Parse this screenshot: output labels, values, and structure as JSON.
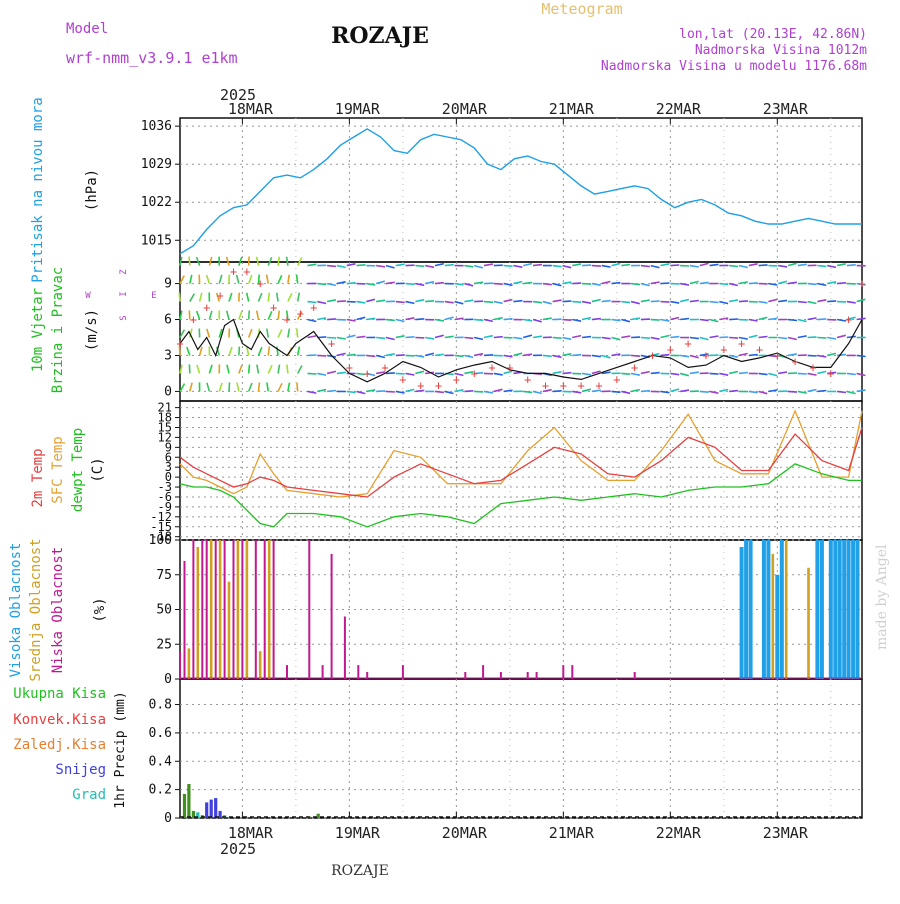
{
  "header": {
    "model_label": "Model",
    "model_name": "wrf-nmm_v3.9.1  e1km",
    "station": "ROZAJE",
    "meteogram": "Meteogram",
    "lonlat": "lon,lat (20.13E, 42.86N)",
    "elevation": "Nadmorska Visina 1012m",
    "model_elevation": "Nadmorska Visina u modelu 1176.68m",
    "credit": "made by Angel",
    "footer_station": "ROZAJE"
  },
  "colors": {
    "pressure": "#1ea0e6",
    "temp2m": "#e64040",
    "sfc_temp": "#e6a030",
    "dewpoint": "#20c020",
    "high_cloud": "#20a0e6",
    "mid_cloud": "#d0a020",
    "low_cloud": "#c01890",
    "total_precip": "#409020",
    "conv_precip": "#e64040",
    "snow": "#4040e0",
    "grad": "#20c0b0",
    "purple_text": "#b040d0"
  },
  "time_axis": {
    "top_year": "2025",
    "bottom_year": "2025",
    "days": [
      "18MAR",
      "19MAR",
      "20MAR",
      "21MAR",
      "22MAR",
      "23MAR"
    ]
  },
  "chart_data": [
    {
      "type": "line",
      "name": "pressure",
      "ylabel_color_text": "Pritisak na nivou mora",
      "unit": "(hPa)",
      "yticks": [
        "1015",
        "1022",
        "1029",
        "1036"
      ],
      "ylim": [
        1011,
        1037.5
      ],
      "x_hours": [
        0,
        3,
        6,
        9,
        12,
        15,
        18,
        21,
        24,
        27,
        30,
        33,
        36,
        39,
        42,
        45,
        48,
        51,
        54,
        57,
        60,
        63,
        66,
        69,
        72,
        75,
        78,
        81,
        84,
        87,
        90,
        93,
        96,
        99,
        102,
        105,
        108,
        111,
        114,
        117,
        120,
        123,
        126,
        129,
        132,
        135,
        138,
        141,
        144,
        147,
        150,
        153
      ],
      "values": [
        1012.5,
        1014,
        1017,
        1019.5,
        1021,
        1021.5,
        1024,
        1026.5,
        1027,
        1026.5,
        1028,
        1030,
        1032.5,
        1034,
        1035.5,
        1034,
        1031.5,
        1031,
        1033.5,
        1034.5,
        1034,
        1033.5,
        1032,
        1029,
        1028,
        1030,
        1030.5,
        1029.5,
        1029,
        1027,
        1025,
        1023.5,
        1024,
        1024.5,
        1025,
        1024.5,
        1022.5,
        1021,
        1022,
        1022.5,
        1021.5,
        1020,
        1019.5,
        1018.5,
        1018,
        1018,
        1018.5,
        1019,
        1018.5,
        1018,
        1018,
        1018
      ],
      "grid": true
    },
    {
      "type": "line",
      "name": "wind",
      "ylabel_color_text": [
        "10m Vjetar",
        "Brzina i Pravac"
      ],
      "unit": "(m/s)",
      "yticks": [
        "0",
        "3",
        "6",
        "9"
      ],
      "ylim": [
        -0.8,
        10.8
      ],
      "compass": [
        "Z",
        "I",
        "W",
        "E",
        "S"
      ],
      "series": [
        {
          "name": "speed",
          "x_hours": [
            0,
            2,
            4,
            6,
            8,
            10,
            12,
            14,
            16,
            18,
            20,
            22,
            24,
            26,
            28,
            30,
            34,
            38,
            42,
            46,
            50,
            54,
            58,
            62,
            66,
            70,
            74,
            78,
            82,
            86,
            90,
            94,
            98,
            102,
            106,
            110,
            114,
            118,
            122,
            126,
            130,
            134,
            138,
            142,
            146,
            150,
            153
          ],
          "values": [
            4,
            5,
            3.5,
            4.5,
            3,
            5.5,
            6,
            4,
            3.5,
            5,
            4,
            3.5,
            3,
            4,
            4.5,
            5,
            3,
            1.5,
            0.8,
            1.5,
            2.5,
            2,
            1.2,
            1.8,
            2.2,
            2.5,
            1.8,
            1.5,
            1.5,
            1.2,
            1,
            1.5,
            2,
            2.5,
            3,
            2.8,
            2,
            2.2,
            3,
            2.5,
            2.8,
            3.2,
            2.5,
            2,
            2,
            4,
            6
          ]
        },
        {
          "name": "gust",
          "x_hours": [
            0,
            3,
            6,
            9,
            12,
            15,
            18,
            21,
            24,
            27,
            30,
            34,
            38,
            42,
            46,
            50,
            54,
            58,
            62,
            66,
            70,
            74,
            78,
            82,
            86,
            90,
            94,
            98,
            102,
            106,
            110,
            114,
            118,
            122,
            126,
            130,
            134,
            138,
            142,
            146,
            150,
            153
          ],
          "values": [
            4,
            6,
            7,
            8,
            10,
            10,
            9,
            7,
            6,
            6.5,
            7,
            4,
            2,
            1.5,
            2,
            1,
            0.5,
            0.5,
            1,
            1.5,
            2,
            2,
            1,
            0.5,
            0.5,
            0.5,
            0.5,
            1,
            2,
            3,
            3.5,
            4,
            3,
            3.5,
            4,
            3.5,
            3,
            2.5,
            2,
            1.5,
            6,
            9
          ]
        }
      ],
      "grid": true
    },
    {
      "type": "line",
      "name": "temperature",
      "ylabel_lines": [
        "2m Temp",
        "SFC Temp",
        "dewpt Temp"
      ],
      "unit": "(C)",
      "yticks": [
        "-18",
        "-15",
        "-12",
        "-9",
        "-6",
        "-3",
        "0",
        "3",
        "6",
        "9",
        "12",
        "15",
        "18",
        "21"
      ],
      "ylim": [
        -19,
        23
      ],
      "series": [
        {
          "name": "2m Temp",
          "x_hours": [
            0,
            3,
            6,
            9,
            12,
            15,
            18,
            21,
            24,
            30,
            36,
            42,
            48,
            54,
            60,
            66,
            72,
            78,
            84,
            90,
            96,
            102,
            108,
            114,
            120,
            126,
            132,
            138,
            144,
            150,
            153
          ],
          "values": [
            6,
            3,
            1,
            -1,
            -3,
            -2,
            0,
            -1,
            -3,
            -4,
            -5,
            -6,
            0,
            4,
            1,
            -2,
            -1,
            4,
            9,
            7,
            1,
            0,
            5,
            12,
            9,
            2,
            2,
            13,
            5,
            2,
            15
          ]
        },
        {
          "name": "SFC Temp",
          "x_hours": [
            0,
            3,
            6,
            9,
            12,
            15,
            18,
            21,
            24,
            30,
            36,
            42,
            48,
            54,
            60,
            66,
            72,
            78,
            84,
            90,
            96,
            102,
            108,
            114,
            120,
            126,
            132,
            138,
            144,
            150,
            153
          ],
          "values": [
            4,
            0,
            -1,
            -3,
            -5,
            -3,
            7,
            1,
            -4,
            -5,
            -6,
            -5,
            8,
            6,
            -2,
            -2,
            -2,
            8,
            15,
            5,
            -1,
            -1,
            8,
            19,
            5,
            1,
            1,
            20,
            0,
            0,
            20
          ]
        },
        {
          "name": "dewpt Temp",
          "x_hours": [
            0,
            3,
            6,
            9,
            12,
            15,
            18,
            21,
            24,
            30,
            36,
            42,
            48,
            54,
            60,
            66,
            72,
            78,
            84,
            90,
            96,
            102,
            108,
            114,
            120,
            126,
            132,
            138,
            144,
            150,
            153
          ],
          "values": [
            -2,
            -3,
            -3,
            -4,
            -6,
            -10,
            -14,
            -15,
            -11,
            -11,
            -12,
            -15,
            -12,
            -11,
            -12,
            -14,
            -8,
            -7,
            -6,
            -7,
            -6,
            -5,
            -6,
            -4,
            -3,
            -3,
            -2,
            4,
            1,
            -1,
            -1
          ]
        }
      ],
      "grid": true
    },
    {
      "type": "bar",
      "name": "cloud",
      "ylabel_lines": [
        "Visoka Oblacnost",
        "Srednja Oblacnost",
        "Niska Oblacnost"
      ],
      "unit": "(%)",
      "yticks": [
        "0",
        "25",
        "50",
        "75",
        "100"
      ],
      "ylim": [
        0,
        100
      ],
      "series": [
        {
          "name": "Niska Oblacnost",
          "x_hours": [
            0,
            1,
            3,
            5,
            6,
            8,
            10,
            12,
            14,
            17,
            19,
            21,
            24,
            29,
            32,
            34,
            37,
            40,
            42,
            50,
            64,
            68,
            72,
            78,
            80,
            86,
            88,
            102
          ],
          "values": [
            20,
            85,
            100,
            100,
            100,
            100,
            100,
            100,
            100,
            100,
            100,
            100,
            10,
            100,
            10,
            90,
            45,
            10,
            5,
            10,
            5,
            10,
            5,
            5,
            5,
            10,
            10,
            5
          ]
        },
        {
          "name": "Srednja Oblacnost",
          "x_hours": [
            2,
            4,
            7,
            9,
            11,
            13,
            15,
            18,
            20,
            128,
            132,
            133,
            136,
            141
          ],
          "values": [
            22,
            95,
            100,
            100,
            70,
            100,
            100,
            20,
            100,
            100,
            100,
            90,
            100,
            80
          ]
        },
        {
          "name": "Visoka Oblacnost",
          "x_hours": [
            126,
            127,
            128,
            131,
            132,
            134,
            135,
            143,
            144,
            146,
            147,
            148,
            149,
            150,
            151,
            152
          ],
          "values": [
            95,
            100,
            100,
            100,
            100,
            75,
            100,
            100,
            100,
            100,
            100,
            100,
            100,
            100,
            100,
            100
          ]
        }
      ],
      "grid": true
    },
    {
      "type": "bar",
      "name": "precip",
      "legend": [
        "Ukupna Kisa",
        "Konvek.Kisa",
        "Zaledj.Kisa",
        "Snijeg",
        "Grad"
      ],
      "ylabel": "1hr Precip (mm)",
      "yticks": [
        "0",
        "0.2",
        "0.4",
        "0.6",
        "0.8"
      ],
      "ylim": [
        0,
        0.98
      ],
      "series": [
        {
          "name": "Ukupna Kisa",
          "x_hours": [
            1,
            2,
            3,
            5,
            29,
            31
          ],
          "values": [
            0.17,
            0.24,
            0.05,
            0.02,
            0.01,
            0.03
          ]
        },
        {
          "name": "Snijeg",
          "x_hours": [
            6,
            7,
            8,
            9
          ],
          "values": [
            0.11,
            0.13,
            0.14,
            0.05
          ]
        },
        {
          "name": "Grad",
          "x_hours": [
            4,
            10
          ],
          "values": [
            0.04,
            0.02
          ]
        }
      ],
      "grid": true
    }
  ]
}
